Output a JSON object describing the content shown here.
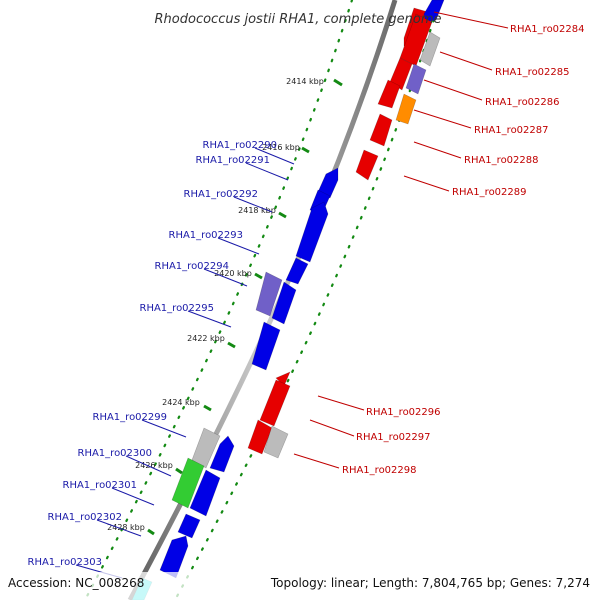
{
  "title": "Rhodococcus jostii RHA1, complete genome",
  "footer": {
    "accession": "Accession: NC_008268",
    "summary": "Topology: linear; Length: 7,804,765 bp; Genes: 7,274"
  },
  "colors": {
    "forward_gene": "#0000e6",
    "reverse_gene": "#e60000",
    "purple_gene": "#7060c8",
    "grey_gene": "#bbbbbb",
    "orange_gene": "#ff8c00",
    "green_gene": "#33cc33",
    "cyan_gene": "#22e6e6",
    "left_label": "#1a1aa8",
    "right_label": "#c00000",
    "tick": "#138a13",
    "backbone": "#888888"
  },
  "scale_ticks": [
    {
      "kbp": 2414,
      "label": "2414 kbp"
    },
    {
      "kbp": 2416,
      "label": "2416 kbp"
    },
    {
      "kbp": 2418,
      "label": "2418 kbp"
    },
    {
      "kbp": 2420,
      "label": "2420 kbp"
    },
    {
      "kbp": 2422,
      "label": "2422 kbp"
    },
    {
      "kbp": 2424,
      "label": "2424 kbp"
    },
    {
      "kbp": 2426,
      "label": "2426 kbp"
    },
    {
      "kbp": 2428,
      "label": "2428 kbp"
    }
  ],
  "genes": [
    {
      "id": "RHA1_ro02284",
      "strand": "reverse",
      "color": "red"
    },
    {
      "id": "RHA1_ro02285",
      "strand": "reverse",
      "color": "red"
    },
    {
      "id": "RHA1_ro02286",
      "strand": "reverse",
      "color": "red"
    },
    {
      "id": "RHA1_ro02287",
      "strand": "reverse",
      "color": "red"
    },
    {
      "id": "RHA1_ro02288",
      "strand": "reverse",
      "color": "red"
    },
    {
      "id": "RHA1_ro02289",
      "strand": "reverse",
      "color": "red"
    },
    {
      "id": "RHA1_ro02290",
      "strand": "forward",
      "color": "blue"
    },
    {
      "id": "RHA1_ro02291",
      "strand": "forward",
      "color": "blue"
    },
    {
      "id": "RHA1_ro02292",
      "strand": "forward",
      "color": "blue"
    },
    {
      "id": "RHA1_ro02293",
      "strand": "forward",
      "color": "blue"
    },
    {
      "id": "RHA1_ro02294",
      "strand": "forward",
      "color": "purple"
    },
    {
      "id": "RHA1_ro02295",
      "strand": "forward",
      "color": "blue"
    },
    {
      "id": "RHA1_ro02296",
      "strand": "reverse",
      "color": "red"
    },
    {
      "id": "RHA1_ro02297",
      "strand": "reverse",
      "color": "red"
    },
    {
      "id": "RHA1_ro02298",
      "strand": "reverse",
      "color": "grey"
    },
    {
      "id": "RHA1_ro02299",
      "strand": "forward",
      "color": "grey"
    },
    {
      "id": "RHA1_ro02300",
      "strand": "forward",
      "color": "green"
    },
    {
      "id": "RHA1_ro02301",
      "strand": "forward",
      "color": "blue"
    },
    {
      "id": "RHA1_ro02302",
      "strand": "forward",
      "color": "blue"
    },
    {
      "id": "RHA1_ro02303",
      "strand": "forward",
      "color": "cyan"
    }
  ]
}
